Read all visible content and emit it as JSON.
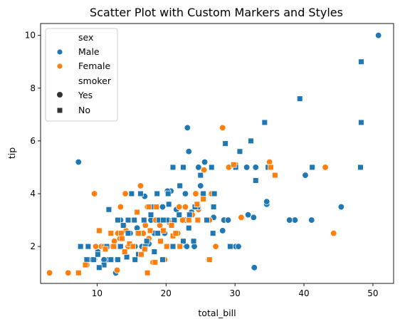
{
  "chart_data": {
    "type": "scatter",
    "title": "Scatter Plot with Custom Markers and Styles",
    "xlabel": "total_bill",
    "ylabel": "tip",
    "xlim": [
      1.8,
      53.0
    ],
    "ylim": [
      0.6,
      10.45
    ],
    "xticks": [
      10,
      20,
      30,
      40,
      50
    ],
    "yticks": [
      2,
      4,
      6,
      8,
      10
    ],
    "grid": false,
    "legend": {
      "placement": "top-left",
      "hue_title": "sex",
      "hue_entries": [
        {
          "label": "Male",
          "color": "#1f77b4"
        },
        {
          "label": "Female",
          "color": "#ff7f0e"
        }
      ],
      "style_title": "smoker",
      "style_entries": [
        {
          "label": "Yes",
          "marker": "circle"
        },
        {
          "label": "No",
          "marker": "square"
        }
      ]
    },
    "series": [
      {
        "sex": "Male",
        "smoker": "Yes",
        "points": [
          [
            50.8,
            10.0
          ],
          [
            7.3,
            5.2
          ],
          [
            23.1,
            6.5
          ],
          [
            23.3,
            5.6
          ],
          [
            24.7,
            5.0
          ],
          [
            25.6,
            5.2
          ],
          [
            26.5,
            4.0
          ],
          [
            22.8,
            4.0
          ],
          [
            20.7,
            4.1
          ],
          [
            40.2,
            4.7
          ],
          [
            34.6,
            3.6
          ],
          [
            34.6,
            3.7
          ],
          [
            45.4,
            3.5
          ],
          [
            38.7,
            3.0
          ],
          [
            41.1,
            3.0
          ],
          [
            37.9,
            3.0
          ],
          [
            32.7,
            3.1
          ],
          [
            31.9,
            3.2
          ],
          [
            28.2,
            2.6
          ],
          [
            30.1,
            2.0
          ],
          [
            30.5,
            2.0
          ],
          [
            32.8,
            1.2
          ],
          [
            28.4,
            3.0
          ],
          [
            29.0,
            3.0
          ],
          [
            23.0,
            2.0
          ],
          [
            22.1,
            2.0
          ],
          [
            21.0,
            3.0
          ],
          [
            18.0,
            3.0
          ],
          [
            15.5,
            2.0
          ],
          [
            12.9,
            1.5
          ],
          [
            11.6,
            1.5
          ],
          [
            12.7,
            1.0
          ],
          [
            11.0,
            1.5
          ],
          [
            10.1,
            1.8
          ],
          [
            15.0,
            2.0
          ],
          [
            16.5,
            2.0
          ],
          [
            17.5,
            2.1
          ],
          [
            18.7,
            4.0
          ],
          [
            19.8,
            2.5
          ],
          [
            16.3,
            4.0
          ],
          [
            24.1,
            2.0
          ],
          [
            25.0,
            4.3
          ],
          [
            26.9,
            3.1
          ],
          [
            23.7,
            3.3
          ],
          [
            22.8,
            3.0
          ],
          [
            20.3,
            3.0
          ],
          [
            17.8,
            3.0
          ],
          [
            14.5,
            3.0
          ],
          [
            13.0,
            2.0
          ],
          [
            10.5,
            2.0
          ],
          [
            9.6,
            1.5
          ],
          [
            8.8,
            1.5
          ],
          [
            18.3,
            2.5
          ],
          [
            20.2,
            4.1
          ],
          [
            21.5,
            3.4
          ],
          [
            19.5,
            3.5
          ],
          [
            16.9,
            3.9
          ],
          [
            15.8,
            2.7
          ],
          [
            14.8,
            2.5
          ],
          [
            13.4,
            3.0
          ],
          [
            12.3,
            2.0
          ],
          [
            11.2,
            2.0
          ],
          [
            31.7,
            5.0
          ],
          [
            33.0,
            5.0
          ]
        ]
      },
      {
        "sex": "Female",
        "smoker": "Yes",
        "points": [
          [
            3.1,
            1.0
          ],
          [
            5.8,
            1.0
          ],
          [
            7.3,
            1.0
          ],
          [
            9.6,
            4.0
          ],
          [
            12.9,
            1.1
          ],
          [
            13.4,
            3.5
          ],
          [
            14.1,
            4.0
          ],
          [
            16.3,
            4.3
          ],
          [
            17.9,
            3.5
          ],
          [
            22.8,
            3.5
          ],
          [
            25.3,
            4.0
          ],
          [
            26.6,
            4.0
          ],
          [
            28.2,
            6.5
          ],
          [
            29.1,
            5.0
          ],
          [
            30.1,
            5.1
          ],
          [
            35.0,
            5.2
          ],
          [
            43.1,
            5.0
          ],
          [
            44.3,
            2.5
          ],
          [
            30.9,
            3.1
          ],
          [
            27.2,
            2.0
          ],
          [
            26.2,
            1.5
          ],
          [
            19.8,
            1.5
          ],
          [
            18.1,
            1.4
          ],
          [
            17.3,
            3.5
          ],
          [
            16.7,
            2.5
          ],
          [
            15.4,
            3.0
          ],
          [
            14.5,
            2.0
          ],
          [
            13.3,
            2.3
          ],
          [
            12.2,
            2.0
          ],
          [
            11.4,
            2.0
          ],
          [
            10.6,
            2.0
          ],
          [
            9.8,
            2.0
          ],
          [
            8.5,
            1.3
          ],
          [
            16.0,
            2.5
          ],
          [
            19.1,
            2.8
          ],
          [
            20.5,
            2.9
          ],
          [
            21.7,
            2.5
          ],
          [
            22.4,
            3.0
          ],
          [
            23.8,
            3.2
          ],
          [
            24.3,
            4.0
          ],
          [
            25.5,
            4.9
          ],
          [
            18.5,
            3.0
          ],
          [
            17.0,
            2.8
          ],
          [
            15.0,
            3.0
          ],
          [
            13.9,
            2.8
          ],
          [
            12.5,
            2.2
          ],
          [
            11.0,
            2.0
          ],
          [
            14.2,
            2.6
          ],
          [
            20.9,
            2.0
          ],
          [
            21.9,
            3.5
          ],
          [
            24.7,
            3.4
          ],
          [
            26.3,
            3.0
          ],
          [
            17.5,
            2.3
          ],
          [
            13.0,
            2.5
          ]
        ]
      },
      {
        "sex": "Male",
        "smoker": "No",
        "points": [
          [
            48.3,
            9.0
          ],
          [
            39.4,
            7.6
          ],
          [
            48.3,
            6.7
          ],
          [
            34.3,
            6.7
          ],
          [
            32.3,
            6.0
          ],
          [
            28.6,
            5.9
          ],
          [
            30.7,
            5.6
          ],
          [
            41.2,
            5.0
          ],
          [
            48.2,
            5.0
          ],
          [
            34.8,
            5.0
          ],
          [
            30.1,
            5.0
          ],
          [
            26.6,
            5.0
          ],
          [
            21.0,
            5.0
          ],
          [
            22.5,
            5.0
          ],
          [
            25.0,
            4.7
          ],
          [
            33.0,
            4.5
          ],
          [
            25.4,
            4.0
          ],
          [
            24.6,
            3.5
          ],
          [
            22.0,
            4.3
          ],
          [
            20.3,
            4.0
          ],
          [
            18.7,
            4.0
          ],
          [
            16.3,
            4.0
          ],
          [
            15.0,
            4.0
          ],
          [
            11.7,
            3.4
          ],
          [
            13.0,
            3.0
          ],
          [
            14.5,
            3.0
          ],
          [
            15.4,
            3.0
          ],
          [
            16.8,
            3.0
          ],
          [
            17.8,
            3.2
          ],
          [
            19.0,
            3.0
          ],
          [
            20.1,
            3.0
          ],
          [
            21.2,
            3.0
          ],
          [
            23.4,
            3.2
          ],
          [
            24.2,
            3.5
          ],
          [
            25.9,
            3.0
          ],
          [
            26.9,
            3.5
          ],
          [
            29.3,
            2.0
          ],
          [
            22.5,
            2.2
          ],
          [
            21.0,
            2.0
          ],
          [
            19.5,
            1.5
          ],
          [
            18.3,
            1.8
          ],
          [
            17.0,
            2.0
          ],
          [
            16.0,
            1.7
          ],
          [
            15.5,
            1.5
          ],
          [
            14.3,
            1.6
          ],
          [
            13.0,
            1.5
          ],
          [
            12.0,
            1.5
          ],
          [
            11.0,
            1.3
          ],
          [
            10.3,
            1.2
          ],
          [
            9.5,
            1.5
          ],
          [
            8.5,
            1.5
          ],
          [
            7.6,
            2.0
          ],
          [
            8.7,
            2.0
          ],
          [
            10.1,
            1.7
          ],
          [
            11.4,
            2.0
          ],
          [
            12.5,
            2.0
          ],
          [
            13.4,
            2.0
          ],
          [
            14.5,
            2.5
          ],
          [
            15.9,
            2.5
          ],
          [
            17.2,
            2.2
          ],
          [
            18.0,
            3.5
          ],
          [
            19.6,
            3.0
          ],
          [
            20.4,
            3.6
          ],
          [
            21.9,
            3.2
          ],
          [
            23.3,
            2.7
          ],
          [
            24.0,
            2.2
          ],
          [
            26.8,
            2.5
          ],
          [
            27.0,
            4.0
          ],
          [
            13.8,
            2.8
          ],
          [
            18.8,
            2.5
          ]
        ]
      },
      {
        "sex": "Female",
        "smoker": "No",
        "points": [
          [
            7.3,
            1.0
          ],
          [
            8.3,
            1.3
          ],
          [
            10.3,
            2.6
          ],
          [
            12.4,
            2.0
          ],
          [
            13.5,
            2.5
          ],
          [
            14.7,
            2.1
          ],
          [
            15.2,
            2.0
          ],
          [
            16.0,
            2.5
          ],
          [
            17.3,
            1.0
          ],
          [
            18.4,
            1.4
          ],
          [
            19.6,
            2.6
          ],
          [
            20.8,
            2.8
          ],
          [
            21.0,
            2.4
          ],
          [
            22.0,
            2.0
          ],
          [
            23.3,
            3.0
          ],
          [
            24.5,
            3.6
          ],
          [
            25.4,
            3.8
          ],
          [
            26.3,
            1.5
          ],
          [
            29.8,
            5.1
          ],
          [
            35.2,
            5.0
          ],
          [
            35.8,
            4.7
          ],
          [
            16.4,
            1.7
          ],
          [
            17.7,
            2.6
          ],
          [
            18.6,
            3.5
          ],
          [
            20.1,
            2.0
          ],
          [
            14.0,
            1.8
          ],
          [
            12.0,
            2.5
          ],
          [
            11.2,
            1.9
          ],
          [
            15.8,
            3.3
          ],
          [
            13.6,
            2.3
          ],
          [
            16.9,
            1.9
          ],
          [
            19.2,
            2.2
          ],
          [
            21.4,
            2.5
          ],
          [
            24.6,
            3.0
          ],
          [
            17.5,
            3.5
          ]
        ]
      }
    ]
  }
}
